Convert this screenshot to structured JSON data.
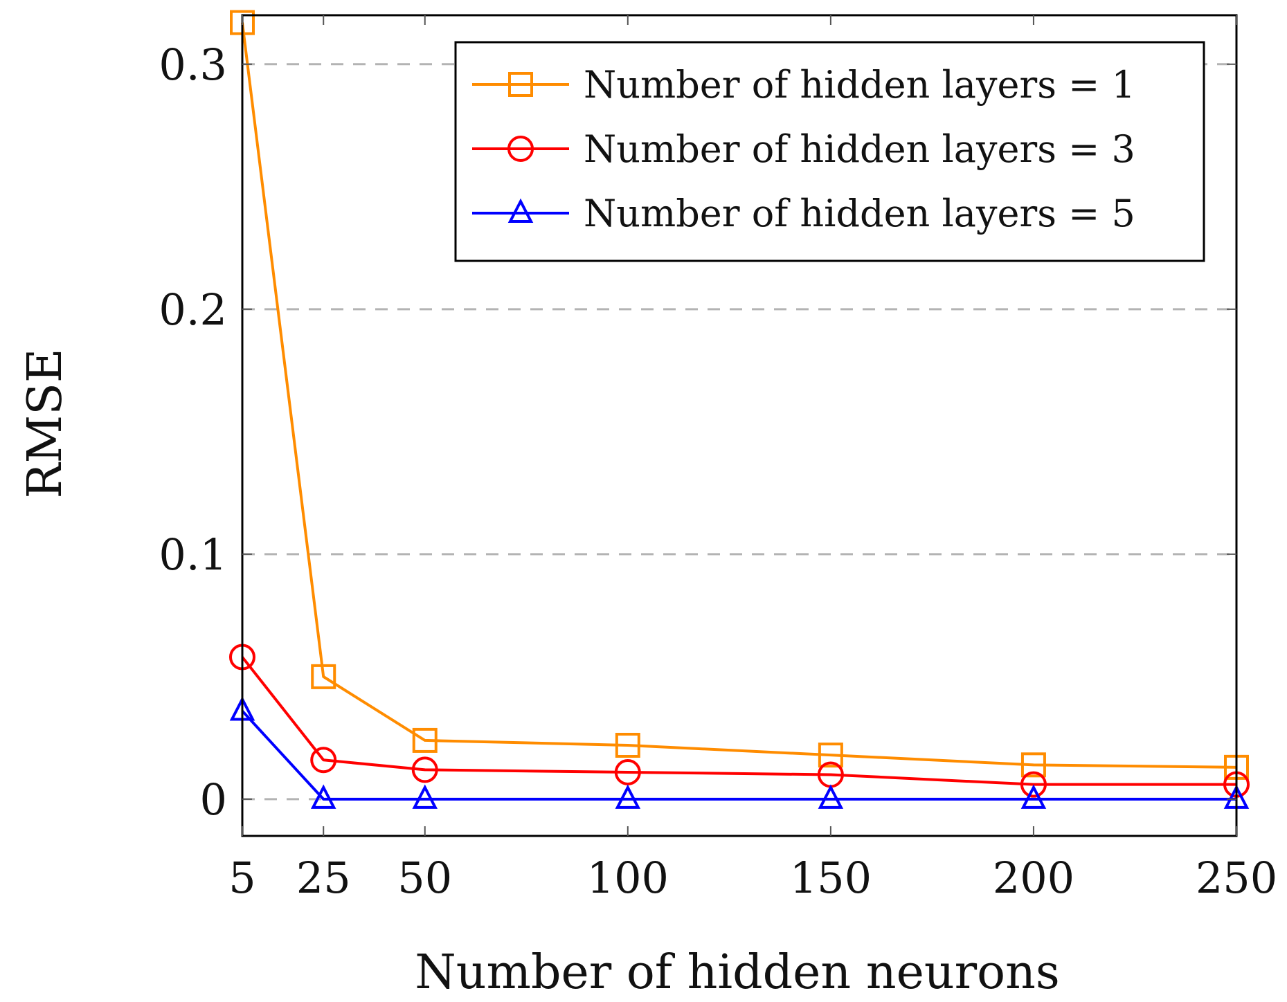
{
  "chart_data": {
    "type": "line",
    "xlabel": "Number of hidden neurons",
    "ylabel": "RMSE",
    "x": [
      5,
      25,
      50,
      100,
      150,
      200,
      250
    ],
    "xticks": [
      "5",
      "25",
      "50",
      "100",
      "150",
      "200",
      "250"
    ],
    "xlim": [
      5,
      250
    ],
    "yticks": [
      "0",
      "0.1",
      "0.2",
      "0.3"
    ],
    "ytick_values": [
      0,
      0.1,
      0.2,
      0.3
    ],
    "ylim": [
      -0.015,
      0.32
    ],
    "grid": "horizontal dashed",
    "legend_position": "top-right",
    "series": [
      {
        "name": "Number of hidden layers = 1",
        "color": "#ff8c00",
        "marker": "square",
        "values": [
          0.317,
          0.05,
          0.024,
          0.022,
          0.018,
          0.014,
          0.013
        ]
      },
      {
        "name": "Number of hidden layers = 3",
        "color": "#ff0000",
        "marker": "circle",
        "values": [
          0.058,
          0.016,
          0.012,
          0.011,
          0.01,
          0.006,
          0.006
        ]
      },
      {
        "name": "Number of hidden layers = 5",
        "color": "#0000ff",
        "marker": "triangle",
        "values": [
          0.036,
          0.0,
          0.0,
          0.0,
          0.0,
          0.0,
          0.0
        ]
      }
    ]
  }
}
